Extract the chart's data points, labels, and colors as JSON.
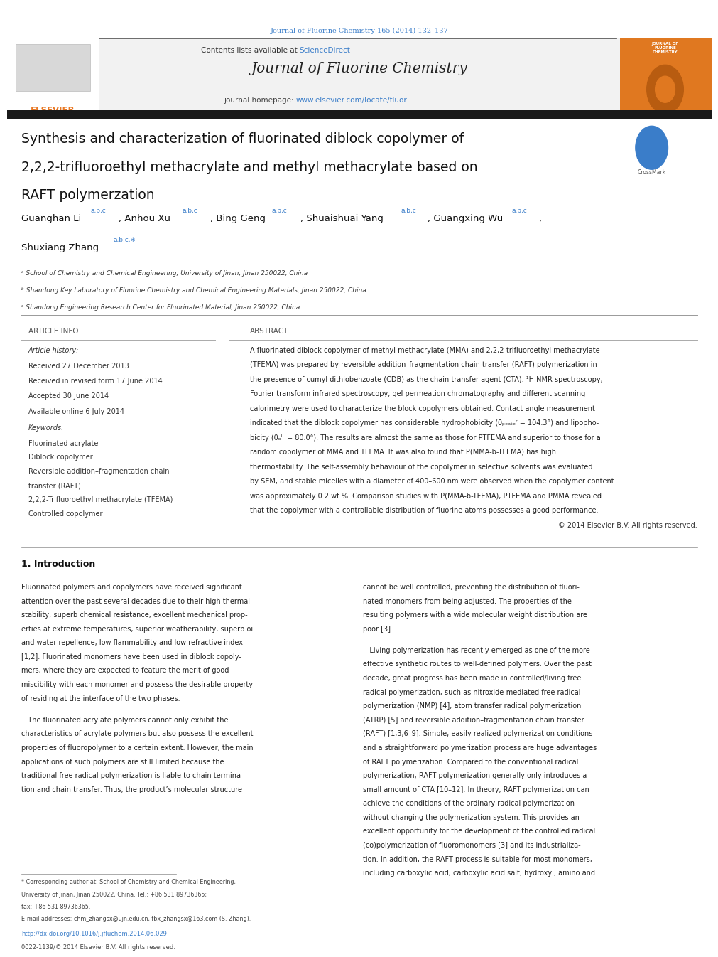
{
  "bg_color": "#ffffff",
  "page_width": 9.92,
  "page_height": 13.23,
  "header_journal_ref": "Journal of Fluorine Chemistry 165 (2014) 132–137",
  "header_journal_ref_color": "#3a7dc9",
  "journal_title": "Journal of Fluorine Chemistry",
  "sciencedirect_color": "#3a7dc9",
  "homepage_url": "www.elsevier.com/locate/fluor",
  "homepage_url_color": "#3a7dc9",
  "elsevier_color": "#e87722",
  "black_bar_color": "#1a1a1a",
  "article_title_line1": "Synthesis and characterization of fluorinated diblock copolymer of",
  "article_title_line2": "2,2,2-trifluoroethyl methacrylate and methyl methacrylate based on",
  "article_title_line3": "RAFT polymerzation",
  "affil_a": "ᵃ School of Chemistry and Chemical Engineering, University of Jinan, Jinan 250022, China",
  "affil_b": "ᵇ Shandong Key Laboratory of Fluorine Chemistry and Chemical Engineering Materials, Jinan 250022, China",
  "affil_c": "ᶜ Shandong Engineering Research Center for Fluorinated Material, Jinan 250022, China",
  "section_article_info": "ARTICLE INFO",
  "section_abstract": "ABSTRACT",
  "article_history_label": "Article history:",
  "received1": "Received 27 December 2013",
  "received2": "Received in revised form 17 June 2014",
  "accepted": "Accepted 30 June 2014",
  "available": "Available online 6 July 2014",
  "keywords_label": "Keywords:",
  "kw1": "Fluorinated acrylate",
  "kw2": "Diblock copolymer",
  "kw3": "Reversible addition–fragmentation chain",
  "kw3b": "transfer (RAFT)",
  "kw4": "2,2,2-Trifluoroethyl methacrylate (TFEMA)",
  "kw5": "Controlled copolymer",
  "abstract_copyright": "© 2014 Elsevier B.V. All rights reserved.",
  "intro_heading": "1. Introduction",
  "footnote_doi": "http://dx.doi.org/10.1016/j.jfluchem.2014.06.029",
  "footnote_issn": "0022-1139/© 2014 Elsevier B.V. All rights reserved.",
  "abstract_lines": [
    "A fluorinated diblock copolymer of methyl methacrylate (MMA) and 2,2,2-trifluoroethyl methacrylate",
    "(TFEMA) was prepared by reversible addition–fragmentation chain transfer (RAFT) polymerization in",
    "the presence of cumyl dithiobenzoate (CDB) as the chain transfer agent (CTA). ¹H NMR spectroscopy,",
    "Fourier transform infrared spectroscopy, gel permeation chromatography and different scanning",
    "calorimetry were used to characterize the block copolymers obtained. Contact angle measurement",
    "indicated that the diblock copolymer has considerable hydrophobicity (θₚₑₐₜₑʳ = 104.3°) and lipopho-",
    "bicity (θₒᴵᴸ = 80.0°). The results are almost the same as those for PTFEMA and superior to those for a",
    "random copolymer of MMA and TFEMA. It was also found that P(MMA-b-TFEMA) has high",
    "thermostability. The self-assembly behaviour of the copolymer in selective solvents was evaluated",
    "by SEM, and stable micelles with a diameter of 400–600 nm were observed when the copolymer content",
    "was approximately 0.2 wt.%. Comparison studies with P(MMA-b-TFEMA), PTFEMA and PMMA revealed",
    "that the copolymer with a controllable distribution of fluorine atoms possesses a good performance."
  ],
  "intro_col1_para1_lines": [
    "Fluorinated polymers and copolymers have received significant",
    "attention over the past several decades due to their high thermal",
    "stability, superb chemical resistance, excellent mechanical prop-",
    "erties at extreme temperatures, superior weatherability, superb oil",
    "and water repellence, low flammability and low refractive index",
    "[1,2]. Fluorinated monomers have been used in diblock copoly-",
    "mers, where they are expected to feature the merit of good",
    "miscibility with each monomer and possess the desirable property",
    "of residing at the interface of the two phases."
  ],
  "intro_col1_para2_lines": [
    "   The fluorinated acrylate polymers cannot only exhibit the",
    "characteristics of acrylate polymers but also possess the excellent",
    "properties of fluoropolymer to a certain extent. However, the main",
    "applications of such polymers are still limited because the",
    "traditional free radical polymerization is liable to chain termina-",
    "tion and chain transfer. Thus, the product’s molecular structure"
  ],
  "footnote_lines": [
    "* Corresponding author at: School of Chemistry and Chemical Engineering,",
    "University of Jinan, Jinan 250022, China. Tel.: +86 531 89736365;",
    "fax: +86 531 89736365."
  ],
  "footnote_email": "E-mail addresses: chm_zhangsx@ujn.edu.cn, fbx_zhangsx@163.com (S. Zhang).",
  "intro_col2_para1_lines": [
    "cannot be well controlled, preventing the distribution of fluori-",
    "nated monomers from being adjusted. The properties of the",
    "resulting polymers with a wide molecular weight distribution are",
    "poor [3]."
  ],
  "intro_col2_para2_lines": [
    "   Living polymerization has recently emerged as one of the more",
    "effective synthetic routes to well-defined polymers. Over the past",
    "decade, great progress has been made in controlled/living free",
    "radical polymerization, such as nitroxide-mediated free radical",
    "polymerization (NMP) [4], atom transfer radical polymerization",
    "(ATRP) [5] and reversible addition–fragmentation chain transfer",
    "(RAFT) [1,3,6–9]. Simple, easily realized polymerization conditions",
    "and a straightforward polymerization process are huge advantages",
    "of RAFT polymerization. Compared to the conventional radical",
    "polymerization, RAFT polymerization generally only introduces a",
    "small amount of CTA [10–12]. In theory, RAFT polymerization can",
    "achieve the conditions of the ordinary radical polymerization",
    "without changing the polymerization system. This provides an",
    "excellent opportunity for the development of the controlled radical",
    "(co)polymerization of fluoromonomers [3] and its industrializa-",
    "tion. In addition, the RAFT process is suitable for most monomers,",
    "including carboxylic acid, carboxylic acid salt, hydroxyl, amino and"
  ]
}
